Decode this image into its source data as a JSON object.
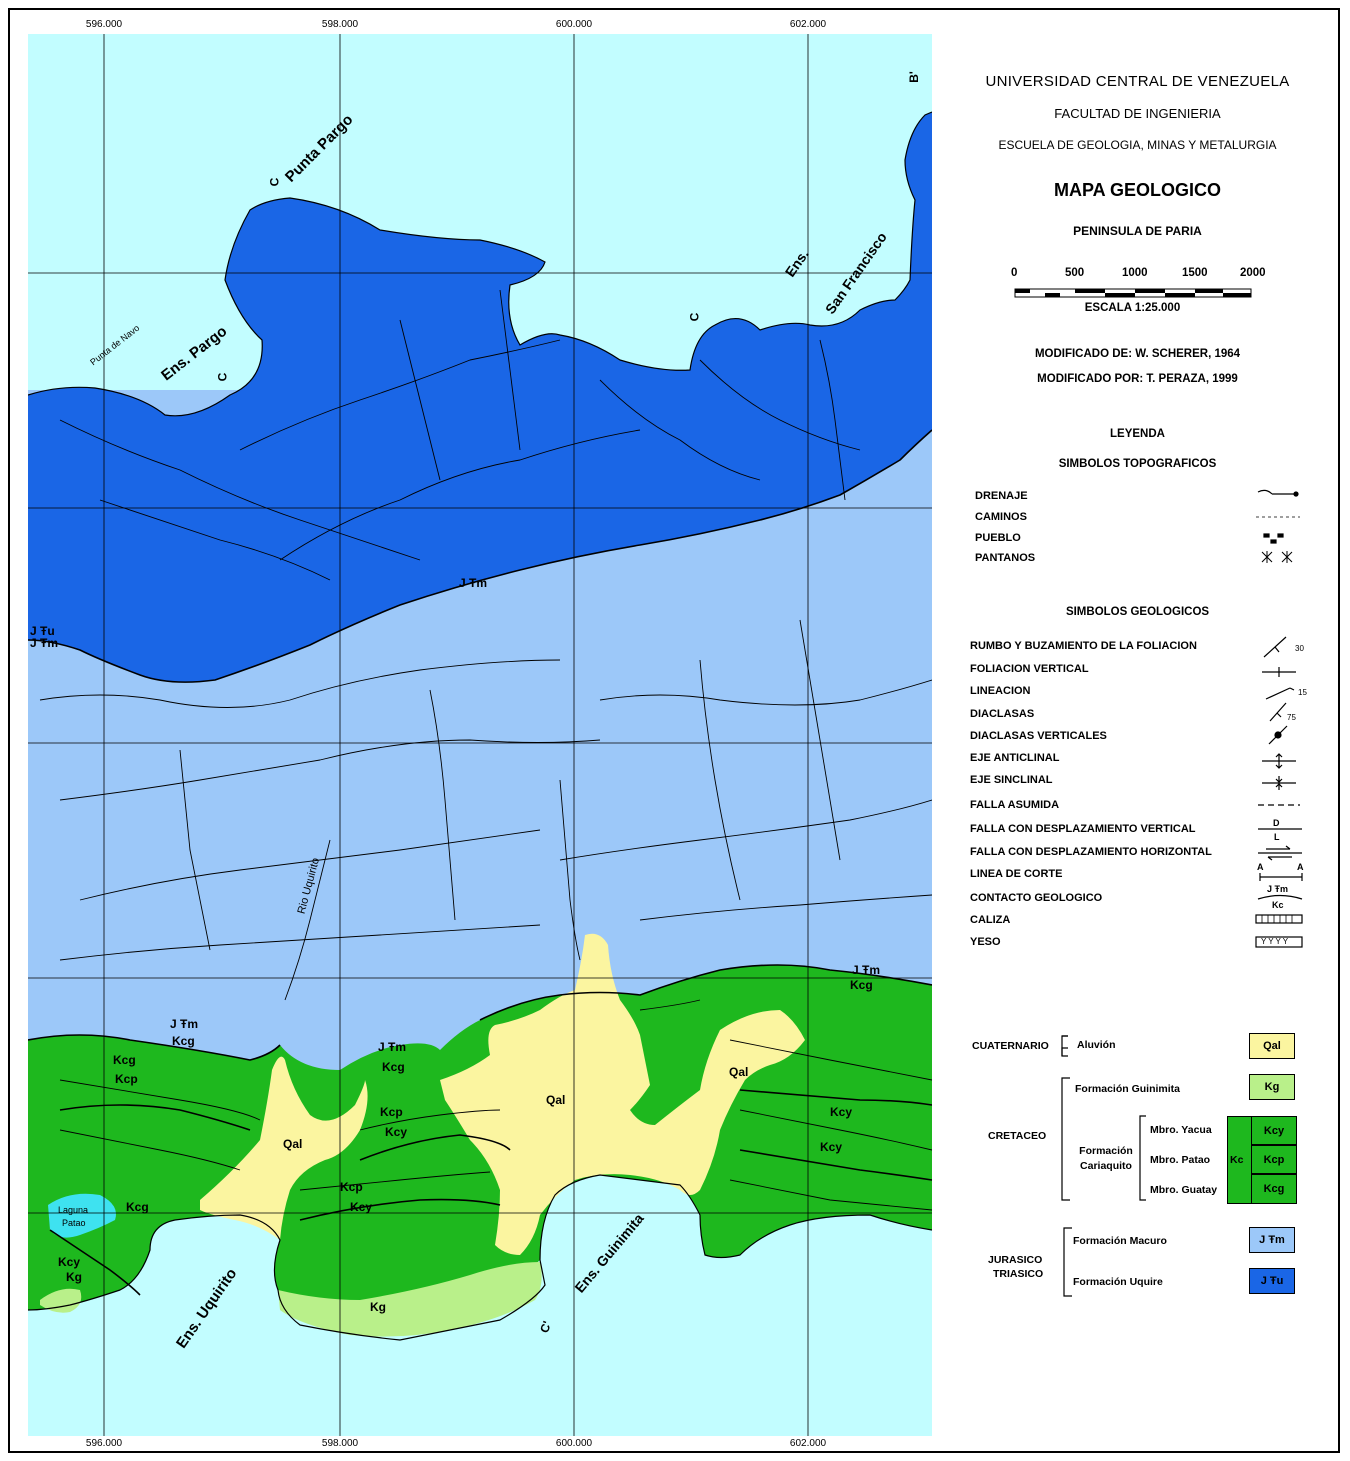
{
  "grid_ticks": [
    "596.000",
    "598.000",
    "600.000",
    "602.000"
  ],
  "title": {
    "university": "UNIVERSIDAD CENTRAL DE VENEZUELA",
    "faculty": "FACULTAD DE INGENIERIA",
    "school": "ESCUELA DE GEOLOGIA, MINAS Y METALURGIA",
    "map_title": "MAPA GEOLOGICO",
    "subtitle": "PENINSULA DE PARIA"
  },
  "scale": {
    "ticks": [
      "0",
      "500",
      "1000",
      "1500",
      "2000"
    ],
    "label": "ESCALA 1:25.000"
  },
  "credits": {
    "modified_from": "MODIFICADO DE: W. SCHERER, 1964",
    "modified_by": "MODIFICADO POR: T. PERAZA, 1999"
  },
  "legend": {
    "title": "LEYENDA",
    "topo_title": "SIMBOLOS TOPOGRAFICOS",
    "topo": [
      "DRENAJE",
      "CAMINOS",
      "PUEBLO",
      "PANTANOS"
    ],
    "geo_title": "SIMBOLOS GEOLOGICOS",
    "geo": [
      "RUMBO Y BUZAMIENTO DE LA FOLIACION",
      "FOLIACION VERTICAL",
      "LINEACION",
      "DIACLASAS",
      "DIACLASAS VERTICALES",
      "EJE ANTICLINAL",
      "EJE SINCLINAL",
      "FALLA ASUMIDA",
      "FALLA CON DESPLAZAMIENTO VERTICAL",
      "FALLA CON DESPLAZAMIENTO HORIZONTAL",
      "LINEA DE CORTE",
      "CONTACTO GEOLOGICO",
      "CALIZA",
      "YESO"
    ],
    "sym_numbers": {
      "foliation": "30",
      "lineation": "15",
      "joints": "75",
      "fault_v_top": "D",
      "fault_v_bottom": "L",
      "cut_a": "A",
      "contact_top": "J Ŧm",
      "contact_bottom": "Kc",
      "yeso": "Y Y Y Y"
    }
  },
  "stratigraphy": {
    "cuaternario": "CUATERNARIO",
    "aluvion": "Aluvión",
    "qal": "Qal",
    "cretaceo": "CRETACEO",
    "guinimita": "Formación Guinimita",
    "kg": "Kg",
    "cariaquito": "Formación Cariaquito",
    "kc": "Kc",
    "yacua": "Mbro. Yacua",
    "kcy": "Kcy",
    "patao": "Mbro. Patao",
    "kcp": "Kcp",
    "guatay": "Mbro. Guatay",
    "kcg": "Kcg",
    "jurasico": "JURASICO",
    "triasico": "TRIASICO",
    "macuro": "Formación Macuro",
    "jtm": "J Ŧm",
    "uquire": "Formación Uquire",
    "jtu": "J Ŧu"
  },
  "map_labels": {
    "punta_pargo": "Punta Pargo",
    "punta_de_navo": "Punta de Navo",
    "ens_pargo": "Ens. Pargo",
    "ens_san_francisco_1": "Ens.",
    "ens_san_francisco_2": "San Francisco",
    "ens_uquirito": "Ens. Uquirito",
    "ens_guinimita": "Ens. Guinimita",
    "laguna_patao_1": "Laguna",
    "laguna_patao_2": "Patao",
    "rio_uquirito": "Rio Uquirito",
    "qal_1": "Qal",
    "qal_2": "Qal",
    "qal_3": "Qal",
    "jtu_1": "J Ŧu",
    "jtm_1": "J Ŧm",
    "jtm_2": "J Ŧm",
    "jtm_3": "J Ŧm",
    "jtm_4": "J Ŧm",
    "jtm_5": "J Ŧm",
    "kcg_1": "Kcg",
    "kcg_2": "Kcg",
    "kcg_3": "Kcg",
    "kcg_4": "Kcg",
    "kcg_5": "Kcg",
    "kcp_1": "Kcp",
    "kcp_2": "Kcp",
    "kcp_3": "Kcp",
    "kcy_1": "Kcy",
    "kcy_2": "Kcy",
    "kcy_3": "Kcy",
    "kcy_4": "Kcy",
    "kcy_5": "Kcy",
    "kg_1": "Kg",
    "kg_2": "Kg",
    "c_1": "C",
    "c_2": "C",
    "c_3": "C",
    "c_prime": "C'",
    "b_prime": "B'"
  },
  "colors": {
    "sea": "#c2fdff",
    "uquire": "#1a66e6",
    "macuro": "#9cc8f9",
    "guatay": "#1eb81e",
    "guinimita": "#b9f08a",
    "aluvion": "#fbf5a0",
    "laguna": "#3ee2f0"
  }
}
